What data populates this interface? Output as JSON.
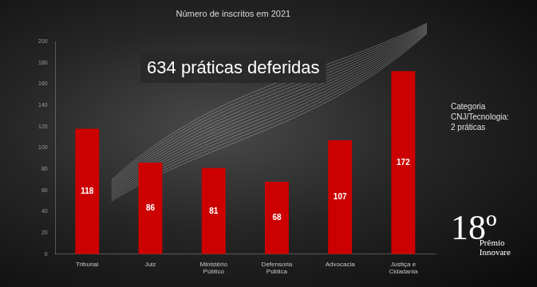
{
  "chart_data": {
    "type": "bar",
    "title": "Número de inscritos em 2021",
    "subtitle": "634 práticas deferidas",
    "annotations": [
      [
        "Categoria",
        "CNJ/Tecnologia:",
        "2 práticas"
      ],
      [
        "18º",
        "Prêmio",
        "Innovare"
      ]
    ],
    "categories": [
      "Tribunal",
      "Juiz",
      "Ministério Público",
      "Defensoria Pública",
      "Advocacia",
      "Justiça e Cidadania"
    ],
    "values": [
      118,
      86,
      81,
      68,
      107,
      172
    ],
    "color": "#cc0000",
    "ylim": [
      0,
      200
    ],
    "yticks": [
      0,
      20,
      40,
      60,
      80,
      100,
      120,
      140,
      160,
      180,
      200
    ],
    "grid": false,
    "data_labels": true
  }
}
